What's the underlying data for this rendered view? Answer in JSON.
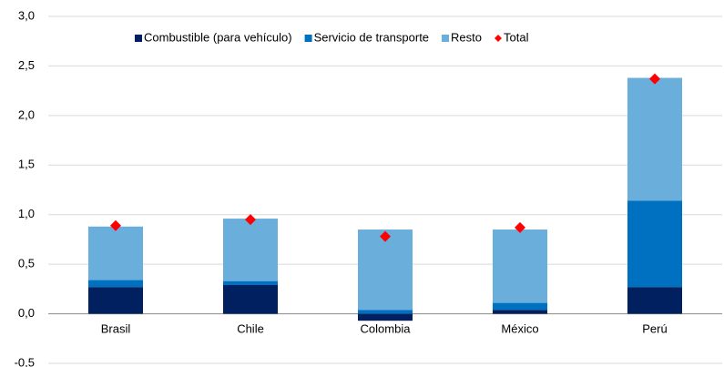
{
  "chart_data": {
    "type": "stacked_bar",
    "categories": [
      "Brasil",
      "Chile",
      "Colombia",
      "México",
      "Perú"
    ],
    "series": [
      {
        "name": "Combustible (para vehículo)",
        "color": "#002060",
        "values": [
          0.27,
          0.29,
          -0.07,
          0.04,
          0.27
        ]
      },
      {
        "name": "Servicio de transporte",
        "color": "#0070c0",
        "values": [
          0.07,
          0.04,
          0.04,
          0.07,
          0.87
        ]
      },
      {
        "name": "Resto",
        "color": "#6aaedc",
        "values": [
          0.54,
          0.63,
          0.81,
          0.74,
          1.24
        ]
      },
      {
        "name": "Total",
        "color": "#ff0000",
        "kind": "marker",
        "values": [
          0.89,
          0.95,
          0.78,
          0.87,
          2.37
        ]
      }
    ],
    "ylim": [
      -0.5,
      3.0
    ],
    "yticks": [
      {
        "value": -0.5,
        "label": "-0,5"
      },
      {
        "value": 0,
        "label": "0,0"
      },
      {
        "value": 0.5,
        "label": "0,5"
      },
      {
        "value": 1.0,
        "label": "1,0"
      },
      {
        "value": 1.5,
        "label": "1,5"
      },
      {
        "value": 2.0,
        "label": "2,0"
      },
      {
        "value": 2.5,
        "label": "2,5"
      },
      {
        "value": 3.0,
        "label": "3,0"
      }
    ],
    "grid": true,
    "legend": "top"
  }
}
